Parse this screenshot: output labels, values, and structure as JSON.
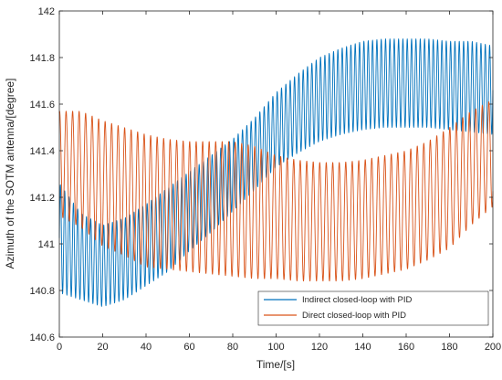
{
  "chart_data": {
    "type": "line",
    "title": "",
    "xlabel": "Time/[s]",
    "ylabel": "Azimuth of the SOTM antenna/[degree]",
    "xlim": [
      0,
      200
    ],
    "ylim": [
      140.6,
      142
    ],
    "xticks": [
      "0",
      "20",
      "40",
      "60",
      "80",
      "100",
      "120",
      "140",
      "160",
      "180",
      "200"
    ],
    "yticks": [
      "140.6",
      "140.8",
      "141",
      "141.2",
      "141.4",
      "141.6",
      "141.8",
      "142"
    ],
    "grid": false,
    "legend_position": "bottom-right",
    "series": [
      {
        "name": "Indirect closed-loop with PID",
        "color": "#0072BD",
        "oscillation_period_s": 2.0,
        "envelope_t": [
          0,
          10,
          20,
          30,
          40,
          50,
          60,
          70,
          80,
          90,
          100,
          110,
          120,
          130,
          140,
          150,
          160,
          170,
          180,
          190,
          200
        ],
        "envelope_upper": [
          141.26,
          141.13,
          141.08,
          141.11,
          141.17,
          141.24,
          141.31,
          141.38,
          141.45,
          141.54,
          141.65,
          141.73,
          141.8,
          141.84,
          141.87,
          141.88,
          141.88,
          141.88,
          141.87,
          141.87,
          141.85
        ],
        "envelope_lower": [
          140.79,
          140.76,
          140.73,
          140.76,
          140.82,
          140.88,
          140.97,
          141.05,
          141.14,
          141.23,
          141.33,
          141.39,
          141.44,
          141.47,
          141.49,
          141.5,
          141.5,
          141.5,
          141.49,
          141.48,
          141.47
        ]
      },
      {
        "name": "Direct closed-loop with PID",
        "color": "#D95319",
        "oscillation_period_s": 3.0,
        "envelope_t": [
          0,
          10,
          20,
          30,
          40,
          50,
          60,
          70,
          80,
          90,
          100,
          110,
          120,
          130,
          140,
          150,
          160,
          170,
          180,
          190,
          200
        ],
        "envelope_upper": [
          141.57,
          141.57,
          141.53,
          141.5,
          141.47,
          141.45,
          141.44,
          141.44,
          141.44,
          141.42,
          141.38,
          141.36,
          141.35,
          141.35,
          141.36,
          141.38,
          141.4,
          141.44,
          141.5,
          141.57,
          141.62
        ],
        "envelope_lower": [
          141.12,
          141.07,
          140.99,
          140.95,
          140.9,
          140.89,
          140.88,
          140.87,
          140.86,
          140.85,
          140.85,
          140.84,
          140.84,
          140.84,
          140.85,
          140.87,
          140.89,
          140.93,
          140.98,
          141.08,
          141.16
        ]
      }
    ]
  }
}
